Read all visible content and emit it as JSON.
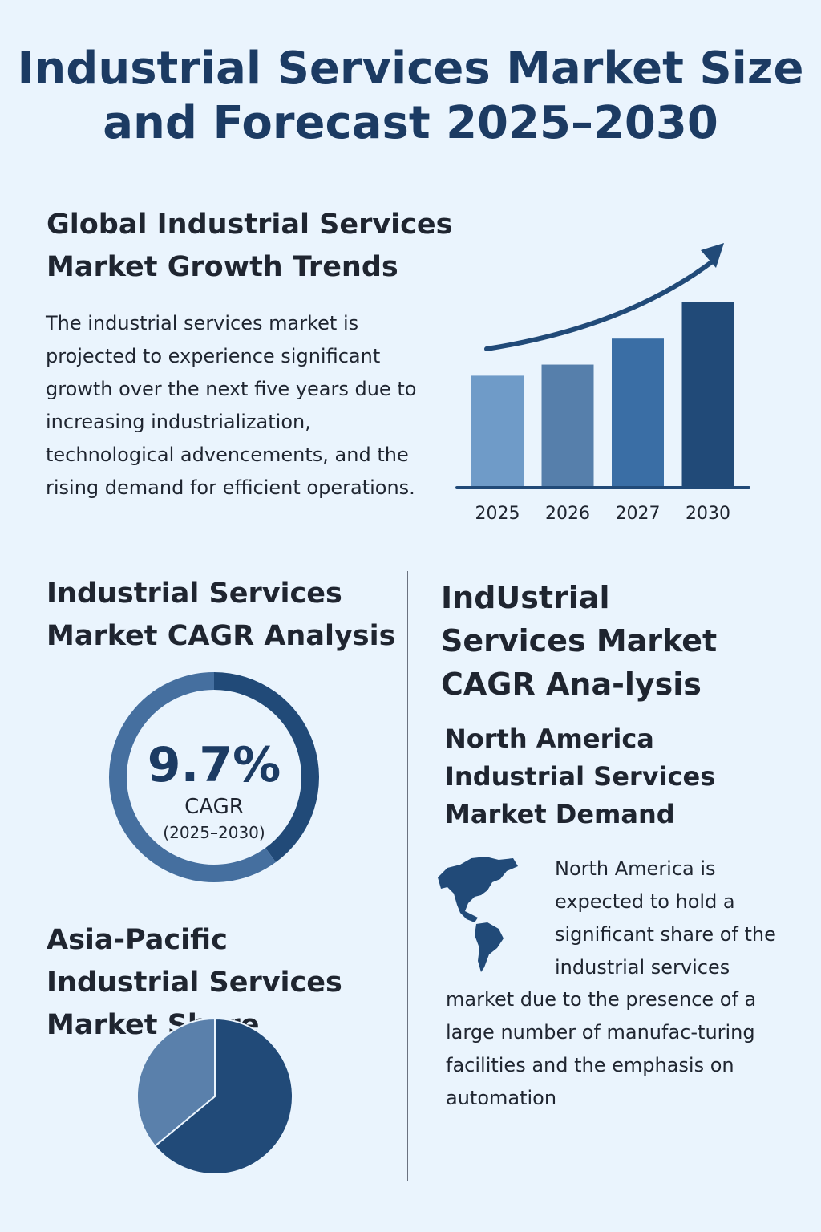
{
  "title": "Industrial Services Market Size and Forecast 2025–2030",
  "growth": {
    "heading": "Global Industrial Services Market Growth Trends",
    "text": "The industrial services market is projected to experience significant growth over the next five years due to increasing industrialization, technological advencements, and the rising demand for efficient operations."
  },
  "cagr": {
    "heading": "Industrial Services Market CAGR Analysis",
    "value": "9.7%",
    "label": "CAGR",
    "period": "(2025–2030)"
  },
  "asia": {
    "heading": "Asia-Pacific Industrial Services Market Share"
  },
  "right": {
    "heading": "IndUstrial Services Market CAGR Ana-lysis",
    "subheading": "North America Industrial Services Market Demand",
    "text_wrap": "North America is expected to hold a significant share of the industrial services",
    "text_rest": "market due to the presence of a large number of manufac-turing facilities and the emphasis on automation",
    "icon": "americas-map-icon"
  },
  "colors": {
    "dark": "#214a78",
    "mid": "#3a6ea5",
    "light": "#6f9bc8",
    "text": "#1c3b63",
    "background": "#eaf4fd"
  },
  "chart_data": [
    {
      "type": "bar",
      "categories": [
        "2025",
        "2026",
        "2027",
        "2030"
      ],
      "values": [
        60,
        66,
        80,
        100
      ],
      "colors": [
        "#6f9bc8",
        "#567fab",
        "#3a6ea5",
        "#214a78"
      ],
      "trend_arrow": true,
      "grid": false
    },
    {
      "type": "donut",
      "values": [
        40,
        60
      ],
      "colors": [
        "#214a78",
        "#456f9f"
      ],
      "center_label": "9.7%"
    },
    {
      "type": "pie",
      "values": [
        64,
        36
      ],
      "colors": [
        "#214a78",
        "#5a80ab"
      ]
    }
  ]
}
